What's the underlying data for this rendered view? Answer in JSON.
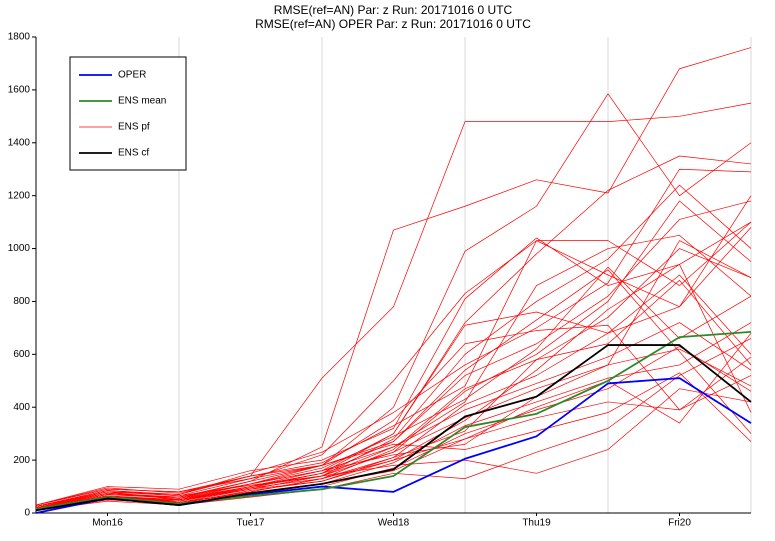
{
  "chart_data": {
    "type": "line",
    "title": "RMSE(ref=AN) Par: z Run: 20171016 0 UTC",
    "subtitle": "RMSE(ref=AN) OPER Par: z Run: 20171016 0 UTC",
    "categories": [
      null,
      "Mon16",
      null,
      "Tue17",
      null,
      "Wed18",
      null,
      "Thu19",
      null,
      "Fri20",
      null
    ],
    "ylim": [
      0,
      1800
    ],
    "yticks": [
      0,
      200,
      400,
      600,
      800,
      1000,
      1200,
      1400,
      1600,
      1800
    ],
    "legend": "upper left",
    "series": [
      {
        "name": "OPER",
        "color": "#0000ff",
        "values": [
          0,
          55,
          30,
          70,
          100,
          80,
          205,
          290,
          490,
          510,
          340
        ]
      },
      {
        "name": "ENS mean",
        "color": "#2a8a2a",
        "values": [
          15,
          60,
          35,
          65,
          90,
          140,
          325,
          375,
          500,
          665,
          685
        ]
      },
      {
        "name": "ENS pf",
        "color": "#ff0000",
        "members": [
          [
            25,
            80,
            70,
            140,
            510,
            780,
            1480,
            1480,
            1480,
            1500,
            1550
          ],
          [
            20,
            75,
            60,
            120,
            250,
            1070,
            1160,
            1260,
            1210,
            1680,
            1760
          ],
          [
            15,
            60,
            50,
            110,
            180,
            400,
            990,
            1160,
            1585,
            1200,
            1400
          ],
          [
            30,
            90,
            80,
            130,
            220,
            500,
            830,
            1030,
            1030,
            860,
            1100
          ],
          [
            20,
            70,
            55,
            100,
            160,
            300,
            720,
            980,
            1220,
            1350,
            1320
          ],
          [
            10,
            50,
            40,
            90,
            140,
            280,
            600,
            800,
            960,
            1240,
            1000
          ],
          [
            25,
            85,
            70,
            150,
            230,
            380,
            560,
            700,
            870,
            1300,
            1290
          ],
          [
            15,
            65,
            45,
            95,
            150,
            270,
            520,
            640,
            820,
            1110,
            1180
          ],
          [
            20,
            60,
            40,
            80,
            130,
            240,
            470,
            580,
            740,
            1000,
            890
          ],
          [
            30,
            95,
            75,
            140,
            190,
            330,
            480,
            1030,
            900,
            780,
            1080
          ],
          [
            10,
            55,
            35,
            85,
            120,
            210,
            410,
            520,
            680,
            900,
            600
          ],
          [
            20,
            70,
            60,
            110,
            170,
            290,
            430,
            620,
            930,
            660,
            820
          ],
          [
            15,
            50,
            45,
            90,
            140,
            250,
            390,
            490,
            590,
            720,
            540
          ],
          [
            25,
            80,
            50,
            100,
            150,
            230,
            360,
            470,
            560,
            620,
            480
          ],
          [
            20,
            65,
            40,
            75,
            110,
            190,
            330,
            420,
            510,
            560,
            720
          ],
          [
            10,
            45,
            30,
            70,
            100,
            170,
            300,
            390,
            470,
            630,
            460
          ],
          [
            30,
            100,
            90,
            160,
            200,
            320,
            810,
            1040,
            860,
            940,
            380
          ],
          [
            15,
            60,
            50,
            95,
            130,
            200,
            280,
            360,
            420,
            390,
            590
          ],
          [
            20,
            75,
            55,
            120,
            180,
            260,
            240,
            310,
            380,
            530,
            270
          ],
          [
            25,
            85,
            65,
            105,
            140,
            180,
            200,
            150,
            240,
            470,
            420
          ],
          [
            10,
            55,
            30,
            60,
            90,
            150,
            130,
            230,
            320,
            520,
            660
          ],
          [
            20,
            70,
            60,
            110,
            160,
            220,
            260,
            440,
            560,
            1030,
            890
          ],
          [
            15,
            60,
            45,
            100,
            150,
            300,
            710,
            760,
            680,
            780,
            1200
          ],
          [
            30,
            90,
            80,
            140,
            180,
            350,
            640,
            690,
            710,
            390,
            520
          ],
          [
            20,
            65,
            50,
            90,
            120,
            200,
            350,
            540,
            770,
            940,
            1100
          ],
          [
            15,
            55,
            40,
            80,
            130,
            210,
            310,
            580,
            640,
            880,
            560
          ],
          [
            25,
            75,
            55,
            110,
            160,
            250,
            420,
            860,
            1000,
            1050,
            820
          ],
          [
            10,
            50,
            35,
            70,
            110,
            160,
            280,
            400,
            500,
            340,
            680
          ],
          [
            20,
            80,
            65,
            130,
            180,
            270,
            540,
            730,
            920,
            610,
            300
          ],
          [
            15,
            60,
            50,
            100,
            140,
            230,
            460,
            600,
            800,
            1180,
            950
          ]
        ]
      },
      {
        "name": "ENS cf",
        "color": "#000000",
        "values": [
          10,
          55,
          30,
          75,
          110,
          165,
          365,
          440,
          635,
          635,
          420
        ]
      }
    ]
  }
}
